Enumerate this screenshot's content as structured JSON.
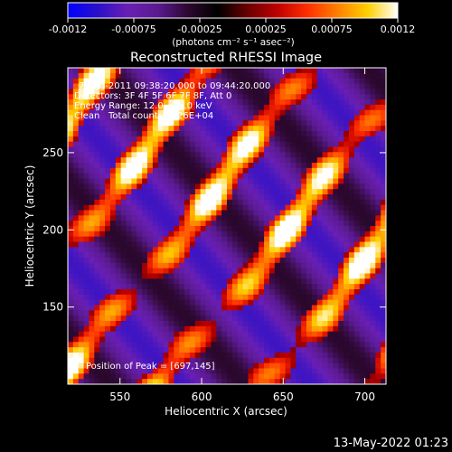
{
  "colorbar": {
    "stops": [
      "#0000ff",
      "#2a10c8",
      "#6a1fb4",
      "#5a1a90",
      "#2d0830",
      "#000000",
      "#6a0000",
      "#c00000",
      "#ff3000",
      "#ff8000",
      "#ffd000",
      "#ffffff"
    ],
    "ticks": [
      "-0.0012",
      "-0.00075",
      "-0.00025",
      "0.00025",
      "0.00075",
      "0.0012"
    ],
    "units": "(photons cm⁻² s⁻¹ asec⁻²)"
  },
  "plot": {
    "title": "Reconstructed RHESSI Image",
    "info_line1": "7-Aug-2011 09:38:20.000 to 09:44:20.000",
    "info_line2": "Detectors: 3F 4F 5F 6F 7F 8F, Att 0",
    "info_line3": "Energy Range: 12.0 - 25.0 keV",
    "info_line4_a": "Clean",
    "info_line4_b": "Total counts: 3.26E+04",
    "peak_text": "Position of Peak = [697,145]",
    "xlabel": "Heliocentric X (arcsec)",
    "ylabel": "Heliocentric Y (arcsec)",
    "footer": "13-May-2022 01:23"
  },
  "chart_data": {
    "type": "heatmap",
    "title": "Reconstructed RHESSI Image",
    "xlabel": "Heliocentric X (arcsec)",
    "ylabel": "Heliocentric Y (arcsec)",
    "xlim": [
      518,
      713
    ],
    "ylim": [
      100,
      305
    ],
    "xticks": [
      550,
      600,
      650,
      700
    ],
    "yticks": [
      150,
      200,
      250
    ],
    "colorbar_range": [
      -0.0012,
      0.0012
    ],
    "peak_position": [
      697,
      145
    ],
    "time_range": "7-Aug-2011 09:38:20.000 to 09:44:20.000",
    "energy_range_keV": [
      12.0,
      25.0
    ],
    "total_counts": 32600
  }
}
